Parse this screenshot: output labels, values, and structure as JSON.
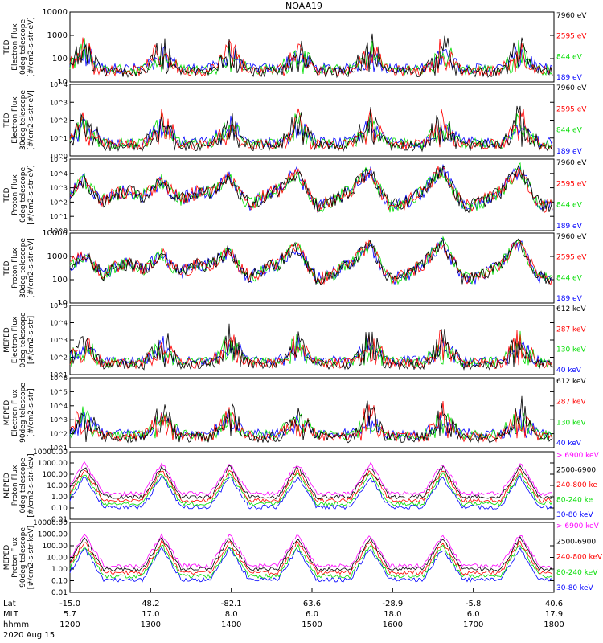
{
  "chart_data": {
    "type": "line",
    "title": "NOAA19",
    "panels": [
      {
        "ylabel": [
          "TED",
          "Electron Flux",
          "0deg telescope",
          "[#/cm2-s-str-eV]"
        ],
        "yticks": [
          "10000",
          "1000",
          "100",
          "10"
        ],
        "tick_style": "plain",
        "ylim": [
          3,
          10000
        ],
        "series": [
          {
            "name": "7960 eV",
            "color": "#000000"
          },
          {
            "name": "2595 eV",
            "color": "#ff0000"
          },
          {
            "name": "844 eV",
            "color": "#00dd00"
          },
          {
            "name": "189 eV",
            "color": "#0000ff"
          }
        ]
      },
      {
        "ylabel": [
          "TED",
          "Electron Flux",
          "30deg telescope",
          "[#/cm2-s-str-eV]"
        ],
        "yticks": [
          "10^4",
          "10^3",
          "10^2",
          "10^1",
          "10^0"
        ],
        "tick_style": "power",
        "ylim": [
          1,
          10000
        ],
        "series": [
          {
            "name": "7960 eV",
            "color": "#000000"
          },
          {
            "name": "2595 eV",
            "color": "#ff0000"
          },
          {
            "name": "844 eV",
            "color": "#00dd00"
          },
          {
            "name": "189 eV",
            "color": "#0000ff"
          }
        ]
      },
      {
        "ylabel": [
          "TED",
          "Proton Flux",
          "0deg telescope",
          "[#/cm2-s-str-eV]"
        ],
        "yticks": [
          "10^5",
          "10^4",
          "10^3",
          "10^2",
          "10^1",
          "10^0"
        ],
        "tick_style": "power",
        "ylim": [
          1,
          100000
        ],
        "series": [
          {
            "name": "7960 eV",
            "color": "#000000"
          },
          {
            "name": "2595 eV",
            "color": "#ff0000"
          },
          {
            "name": "844 eV",
            "color": "#00dd00"
          },
          {
            "name": "189 eV",
            "color": "#0000ff"
          }
        ]
      },
      {
        "ylabel": [
          "TED",
          "Proton Flux",
          "30deg telescope",
          "[#/cm2-s-str-eV]"
        ],
        "yticks": [
          "10000",
          "1000",
          "100",
          "10"
        ],
        "tick_style": "plain",
        "ylim": [
          2,
          10000
        ],
        "series": [
          {
            "name": "7960 eV",
            "color": "#000000"
          },
          {
            "name": "2595 eV",
            "color": "#ff0000"
          },
          {
            "name": "844 eV",
            "color": "#00dd00"
          },
          {
            "name": "189 eV",
            "color": "#0000ff"
          }
        ]
      },
      {
        "ylabel": [
          "MEPED",
          "Electron Flux",
          "0deg telescope",
          "[#/cm2-s-str]"
        ],
        "yticks": [
          "10^5",
          "10^4",
          "10^3",
          "10^2",
          "10^1"
        ],
        "tick_style": "power",
        "ylim": [
          10,
          100000
        ],
        "series": [
          {
            "name": "612 keV",
            "color": "#000000"
          },
          {
            "name": "287 keV",
            "color": "#ff0000"
          },
          {
            "name": "130 keV",
            "color": "#00dd00"
          },
          {
            "name": "40 keV",
            "color": "#0000ff"
          }
        ]
      },
      {
        "ylabel": [
          "MEPED",
          "Electron Flux",
          "90deg telescope",
          "[#/cm2-s-str]"
        ],
        "yticks": [
          "10^6",
          "10^5",
          "10^4",
          "10^3",
          "10^2",
          "10^1"
        ],
        "tick_style": "power",
        "ylim": [
          10,
          1000000
        ],
        "series": [
          {
            "name": "612 keV",
            "color": "#000000"
          },
          {
            "name": "287 keV",
            "color": "#ff0000"
          },
          {
            "name": "130 keV",
            "color": "#00dd00"
          },
          {
            "name": "40 keV",
            "color": "#0000ff"
          }
        ]
      },
      {
        "ylabel": [
          "MEPED",
          "Proton Flux",
          "0deg telescope",
          "[#/cm2-s-str-keV]"
        ],
        "yticks": [
          "10000.00",
          "1000.00",
          "100.00",
          "10.00",
          "1.00",
          "0.10",
          "0.01"
        ],
        "tick_style": "plain",
        "ylim": [
          0.01,
          10000
        ],
        "series": [
          {
            "name": "> 6900 keV",
            "color": "#ff00ff"
          },
          {
            "name": "2500-6900",
            "color": "#000000"
          },
          {
            "name": "240-800 ke",
            "color": "#ff0000"
          },
          {
            "name": "80-240 ke",
            "color": "#00dd00"
          },
          {
            "name": "30-80 keV",
            "color": "#0000ff"
          }
        ]
      },
      {
        "ylabel": [
          "MEPED",
          "Proton Flux",
          "90deg telescope",
          "[#/cm2-s-str-keV]"
        ],
        "yticks": [
          "10000.00",
          "1000.00",
          "100.00",
          "10.00",
          "1.00",
          "0.10",
          "0.01"
        ],
        "tick_style": "plain",
        "ylim": [
          0.01,
          10000
        ],
        "series": [
          {
            "name": "> 6900 keV",
            "color": "#ff00ff"
          },
          {
            "name": "2500-6900",
            "color": "#000000"
          },
          {
            "name": "240-800 keV",
            "color": "#ff0000"
          },
          {
            "name": "80-240 keV",
            "color": "#00dd00"
          },
          {
            "name": "30-80 keV",
            "color": "#0000ff"
          }
        ]
      }
    ],
    "x_axis": {
      "row_labels": [
        "Lat",
        "MLT",
        "hhmm"
      ],
      "columns": [
        {
          "lat": "-15.0",
          "mlt": "5.7",
          "hhmm": "1200"
        },
        {
          "lat": "48.2",
          "mlt": "17.0",
          "hhmm": "1300"
        },
        {
          "lat": "-82.1",
          "mlt": "8.0",
          "hhmm": "1400"
        },
        {
          "lat": "63.6",
          "mlt": "6.0",
          "hhmm": "1500"
        },
        {
          "lat": "-28.9",
          "mlt": "18.0",
          "hhmm": "1600"
        },
        {
          "lat": "-5.8",
          "mlt": "6.0",
          "hhmm": "1700"
        },
        {
          "lat": "40.6",
          "mlt": "17.9",
          "hhmm": "1800"
        }
      ],
      "date": "2020 Aug 15",
      "time_range_hours": [
        12,
        18
      ]
    }
  }
}
